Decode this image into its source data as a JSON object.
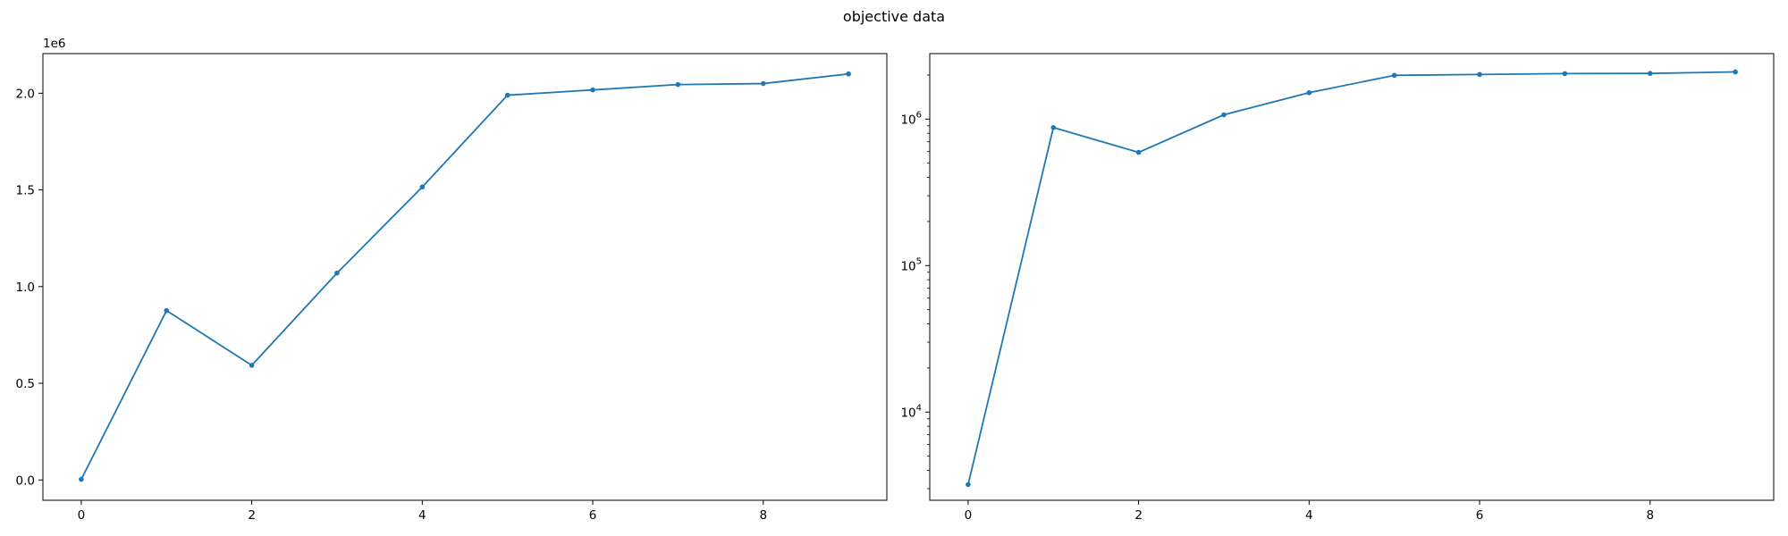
{
  "figure": {
    "title": "objective data"
  },
  "chart_data": [
    {
      "type": "line",
      "title": "",
      "xlabel": "",
      "ylabel": "",
      "y_scale": "linear",
      "y_offset_text": "1e6",
      "xlim": [
        -0.45,
        9.45
      ],
      "ylim": [
        -105000,
        2205000
      ],
      "x_ticks": [
        0,
        2,
        4,
        6,
        8
      ],
      "x_tick_labels": [
        "0",
        "2",
        "4",
        "6",
        "8"
      ],
      "y_ticks": [
        0,
        500000,
        1000000,
        1500000,
        2000000
      ],
      "y_tick_labels": [
        "0.0",
        "0.5",
        "1.0",
        "1.5",
        "2.0"
      ],
      "grid": false,
      "marker": "dot",
      "color": "#1f77b4",
      "series": [
        {
          "x": [
            0,
            1,
            2,
            3,
            4,
            5,
            6,
            7,
            8,
            9
          ],
          "values": [
            3200,
            876000,
            593000,
            1070000,
            1515000,
            1990000,
            2017000,
            2045000,
            2050000,
            2100000
          ]
        }
      ]
    },
    {
      "type": "line",
      "title": "",
      "xlabel": "",
      "ylabel": "",
      "y_scale": "log",
      "xlim": [
        -0.45,
        9.45
      ],
      "ylim": [
        2500,
        2800000
      ],
      "x_ticks": [
        0,
        2,
        4,
        6,
        8
      ],
      "x_tick_labels": [
        "0",
        "2",
        "4",
        "6",
        "8"
      ],
      "y_ticks": [
        10000,
        100000,
        1000000
      ],
      "y_tick_labels": [
        [
          "10",
          "4"
        ],
        [
          "10",
          "5"
        ],
        [
          "10",
          "6"
        ]
      ],
      "grid": false,
      "marker": "dot",
      "color": "#1f77b4",
      "series": [
        {
          "x": [
            0,
            1,
            2,
            3,
            4,
            5,
            6,
            7,
            8,
            9
          ],
          "values": [
            3200,
            876000,
            593000,
            1070000,
            1515000,
            1990000,
            2017000,
            2045000,
            2050000,
            2100000
          ]
        }
      ]
    }
  ]
}
